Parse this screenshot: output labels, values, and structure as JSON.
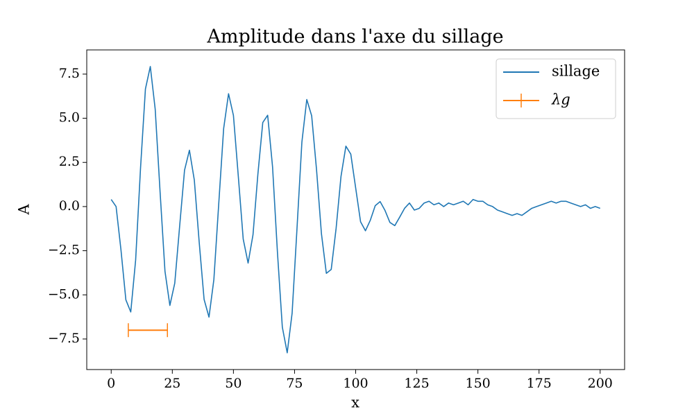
{
  "chart_data": {
    "type": "line",
    "title": "Amplitude dans l'axe du sillage",
    "xlabel": "x",
    "ylabel": "A",
    "xlim": [
      -10,
      210
    ],
    "ylim": [
      -9.23,
      8.87
    ],
    "xticks": [
      0,
      25,
      50,
      75,
      100,
      125,
      150,
      175,
      200
    ],
    "yticks": [
      {
        "value": -7.5,
        "label": "−7.5"
      },
      {
        "value": -5,
        "label": "−5.0"
      },
      {
        "value": -2.5,
        "label": "−2.5"
      },
      {
        "value": 0,
        "label": "0.0"
      },
      2.5,
      {
        "value": 5,
        "label": "5.0"
      },
      7.5
    ],
    "legend": "upper right",
    "x": [
      0,
      2,
      4,
      6,
      8,
      10,
      12,
      14,
      16,
      18,
      20,
      22,
      24,
      26,
      28,
      30,
      32,
      34,
      36,
      38,
      40,
      42,
      44,
      46,
      48,
      50,
      52,
      54,
      56,
      58,
      60,
      62,
      64,
      66,
      68,
      70,
      72,
      74,
      76,
      78,
      80,
      82,
      84,
      86,
      88,
      90,
      92,
      94,
      96,
      98,
      100,
      102,
      104,
      106,
      108,
      110,
      112,
      114,
      116,
      118,
      120,
      122,
      124,
      126,
      128,
      130,
      132,
      134,
      136,
      138,
      140,
      142,
      144,
      146,
      148,
      150,
      152,
      154,
      156,
      158,
      160,
      162,
      164,
      166,
      168,
      170,
      172,
      174,
      176,
      178,
      180,
      182,
      184,
      186,
      188,
      190,
      192,
      194,
      196,
      198,
      200
    ],
    "series": [
      {
        "name": "sillage",
        "color": "#1f77b4",
        "values": [
          0.4,
          0.0,
          -2.46,
          -5.28,
          -5.97,
          -3.03,
          2.18,
          6.66,
          7.93,
          5.51,
          0.82,
          -3.67,
          -5.6,
          -4.34,
          -1.11,
          2.06,
          3.19,
          1.5,
          -2.03,
          -5.26,
          -6.26,
          -4.13,
          0.18,
          4.42,
          6.39,
          5.16,
          1.7,
          -1.84,
          -3.2,
          -1.6,
          1.83,
          4.76,
          5.17,
          2.25,
          -2.59,
          -6.83,
          -8.28,
          -6.04,
          -1.24,
          3.65,
          6.06,
          5.14,
          2.07,
          -1.54,
          -3.78,
          -3.56,
          -1.23,
          1.71,
          3.42,
          2.97,
          1.05,
          -0.86,
          -1.37,
          -0.77,
          0.05,
          0.28,
          -0.22,
          -0.9,
          -1.08,
          -0.6,
          -0.1,
          0.2,
          -0.2,
          -0.1,
          0.2,
          0.3,
          0.1,
          0.2,
          0.0,
          0.2,
          0.1,
          0.2,
          0.3,
          0.1,
          0.4,
          0.3,
          0.3,
          0.1,
          0.0,
          -0.2,
          -0.3,
          -0.4,
          -0.5,
          -0.4,
          -0.5,
          -0.3,
          -0.1,
          0.0,
          0.1,
          0.2,
          0.3,
          0.2,
          0.3,
          0.3,
          0.2,
          0.1,
          0.0,
          0.1,
          -0.1,
          0.0,
          -0.1
        ]
      },
      {
        "name": "λg",
        "color": "#ff7f0e",
        "x": 15,
        "y": -7,
        "xerr": 8
      }
    ]
  }
}
